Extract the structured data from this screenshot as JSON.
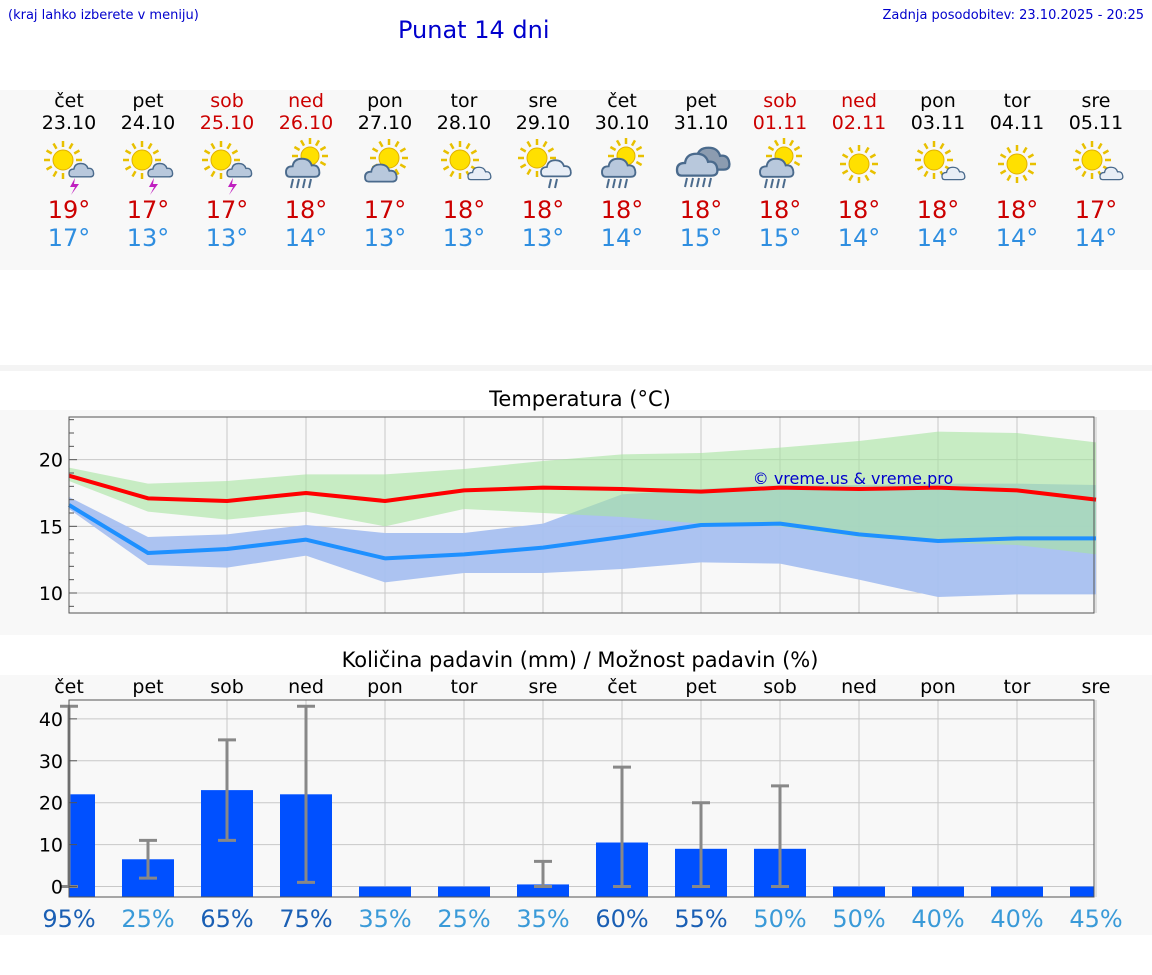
{
  "header": {
    "left_note": "(kraj lahko izberete v meniju)",
    "title": "Punat 14 dni",
    "updated": "Zadnja posodobitev: 23.10.2025 - 20:25"
  },
  "colors": {
    "max_temp": "#cc0000",
    "min_temp": "#2f8ee0",
    "weekend": "#cc0000",
    "bar": "#0050ff",
    "max_line": "#ff0000",
    "min_line": "#1e90ff",
    "max_band": "#a6e4a0",
    "min_band": "#a8c0f0",
    "overlap_band": "#80c8aa"
  },
  "days": [
    {
      "name": "čet",
      "date": "23.10",
      "weekend": false,
      "icon": "sun-cloud-thunder-icon",
      "max": "19°",
      "min": "17°"
    },
    {
      "name": "pet",
      "date": "24.10",
      "weekend": false,
      "icon": "sun-cloud-thunder-icon",
      "max": "17°",
      "min": "13°"
    },
    {
      "name": "sob",
      "date": "25.10",
      "weekend": true,
      "icon": "sun-cloud-thunder-icon",
      "max": "17°",
      "min": "13°"
    },
    {
      "name": "ned",
      "date": "26.10",
      "weekend": true,
      "icon": "sun-rain-cloud-icon",
      "max": "18°",
      "min": "14°"
    },
    {
      "name": "pon",
      "date": "27.10",
      "weekend": false,
      "icon": "sun-behind-cloud-icon",
      "max": "17°",
      "min": "13°"
    },
    {
      "name": "tor",
      "date": "28.10",
      "weekend": false,
      "icon": "sun-small-cloud-icon",
      "max": "18°",
      "min": "13°"
    },
    {
      "name": "sre",
      "date": "29.10",
      "weekend": false,
      "icon": "sun-cloud-light-rain-icon",
      "max": "18°",
      "min": "13°"
    },
    {
      "name": "čet",
      "date": "30.10",
      "weekend": false,
      "icon": "sun-rain-cloud-icon",
      "max": "18°",
      "min": "14°"
    },
    {
      "name": "pet",
      "date": "31.10",
      "weekend": false,
      "icon": "rain-cloud-icon",
      "max": "18°",
      "min": "15°"
    },
    {
      "name": "sob",
      "date": "01.11",
      "weekend": true,
      "icon": "sun-rain-cloud-icon",
      "max": "18°",
      "min": "15°"
    },
    {
      "name": "ned",
      "date": "02.11",
      "weekend": true,
      "icon": "sun-icon",
      "max": "18°",
      "min": "14°"
    },
    {
      "name": "pon",
      "date": "03.11",
      "weekend": false,
      "icon": "sun-small-cloud-icon",
      "max": "18°",
      "min": "14°"
    },
    {
      "name": "tor",
      "date": "04.11",
      "weekend": false,
      "icon": "sun-icon",
      "max": "18°",
      "min": "14°"
    },
    {
      "name": "sre",
      "date": "05.11",
      "weekend": false,
      "icon": "sun-small-cloud-icon",
      "max": "17°",
      "min": "14°"
    }
  ],
  "chart_data": [
    {
      "type": "line",
      "title": "Temperatura (°C)",
      "watermark": "© vreme.us & vreme.pro",
      "x": [
        "23.10",
        "24.10",
        "25.10",
        "26.10",
        "27.10",
        "28.10",
        "29.10",
        "30.10",
        "31.10",
        "01.11",
        "02.11",
        "03.11",
        "04.11",
        "05.11"
      ],
      "ylim": [
        8.5,
        23.2
      ],
      "yticks": [
        10,
        15,
        20
      ],
      "grid": true,
      "series": [
        {
          "values": [
            18.8,
            17.1,
            16.9,
            17.5,
            16.9,
            17.7,
            17.9,
            17.8,
            17.6,
            17.9,
            17.8,
            17.9,
            17.7,
            17.0
          ]
        },
        {
          "values": [
            16.6,
            13.0,
            13.3,
            14.0,
            12.6,
            12.9,
            13.4,
            14.2,
            15.1,
            15.2,
            14.4,
            13.9,
            14.1,
            14.1
          ]
        }
      ],
      "bands": [
        {
          "upper": [
            19.4,
            18.2,
            18.4,
            18.9,
            18.9,
            19.3,
            19.9,
            20.4,
            20.5,
            20.9,
            21.4,
            22.1,
            22.0,
            21.3
          ],
          "lower": [
            18.4,
            16.1,
            15.5,
            16.1,
            15.0,
            16.3,
            16.0,
            15.7,
            15.2,
            15.0,
            14.2,
            13.8,
            13.6,
            12.9
          ]
        },
        {
          "upper": [
            17.2,
            14.2,
            14.4,
            15.1,
            14.5,
            14.5,
            15.2,
            17.4,
            17.8,
            18.1,
            18.1,
            18.2,
            18.2,
            18.1
          ],
          "lower": [
            16.3,
            12.1,
            11.9,
            12.8,
            10.8,
            11.5,
            11.5,
            11.8,
            12.3,
            12.2,
            11.0,
            9.7,
            9.9,
            9.9
          ]
        }
      ]
    },
    {
      "type": "bar",
      "title": "Količina padavin (mm) / Možnost padavin (%)",
      "categories": [
        "čet",
        "pet",
        "sob",
        "ned",
        "pon",
        "tor",
        "sre",
        "čet",
        "pet",
        "sob",
        "ned",
        "pon",
        "tor",
        "sre"
      ],
      "values": [
        22,
        6.5,
        23,
        22,
        0,
        0,
        0.5,
        10.5,
        9,
        9,
        0,
        0,
        0,
        0
      ],
      "error_low": [
        0,
        2,
        11,
        1,
        0,
        0,
        0,
        0,
        0,
        0,
        0,
        0,
        0,
        0
      ],
      "error_high": [
        43,
        11,
        35,
        43,
        0,
        0,
        6,
        28.5,
        20,
        24,
        0,
        0,
        0,
        0
      ],
      "probability": [
        "95%",
        "25%",
        "65%",
        "75%",
        "35%",
        "25%",
        "35%",
        "60%",
        "55%",
        "50%",
        "50%",
        "40%",
        "40%",
        "45%"
      ],
      "prob_high": [
        true,
        false,
        true,
        true,
        false,
        false,
        false,
        true,
        true,
        false,
        false,
        false,
        false,
        false
      ],
      "ylim": [
        -2.5,
        44.5
      ],
      "yticks": [
        0,
        10,
        20,
        30,
        40
      ],
      "grid": true
    }
  ]
}
